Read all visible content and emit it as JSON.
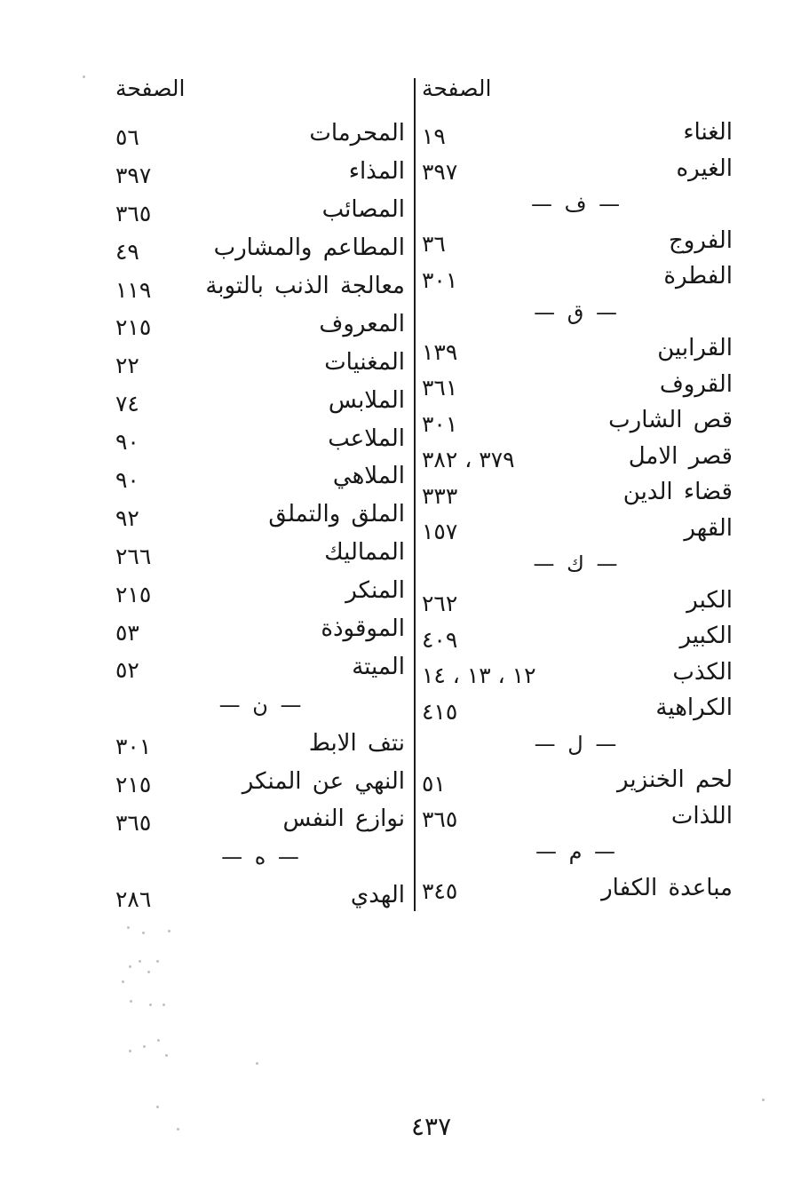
{
  "columns": {
    "right": {
      "header": "الصفحة",
      "entries": [
        {
          "type": "entry",
          "label": "الغناء",
          "pages": "١٩"
        },
        {
          "type": "entry",
          "label": "الغيره",
          "pages": "٣٩٧"
        },
        {
          "type": "section",
          "label": "— ف —"
        },
        {
          "type": "entry",
          "label": "الفروج",
          "pages": "٣٦"
        },
        {
          "type": "entry",
          "label": "الفطرة",
          "pages": "٣٠١"
        },
        {
          "type": "section",
          "label": "— ق —"
        },
        {
          "type": "entry",
          "label": "القرابين",
          "pages": "١٣٩"
        },
        {
          "type": "entry",
          "label": "القروف",
          "pages": "٣٦١"
        },
        {
          "type": "entry",
          "label": "قص الشارب",
          "pages": "٣٠١"
        },
        {
          "type": "entry",
          "label": "قصر الامل",
          "pages": "٣٧٩ ، ٣٨٢"
        },
        {
          "type": "entry",
          "label": "قضاء الدين",
          "pages": "٣٣٣"
        },
        {
          "type": "entry",
          "label": "القهر",
          "pages": "١٥٧"
        },
        {
          "type": "section",
          "label": "— ك —"
        },
        {
          "type": "entry",
          "label": "الكبر",
          "pages": "٢٦٢"
        },
        {
          "type": "entry",
          "label": "الكبير",
          "pages": "٤٠٩"
        },
        {
          "type": "entry",
          "label": "الكذب",
          "pages": "١٢ ، ١٣ ، ١٤"
        },
        {
          "type": "entry",
          "label": "الكراهية",
          "pages": "٤١٥"
        },
        {
          "type": "section",
          "label": "— ل —"
        },
        {
          "type": "entry",
          "label": "لحم الخنزير",
          "pages": "٥١"
        },
        {
          "type": "entry",
          "label": "اللذات",
          "pages": "٣٦٥"
        },
        {
          "type": "section",
          "label": "— م —"
        },
        {
          "type": "entry",
          "label": "مباعدة الكفار",
          "pages": "٣٤٥"
        }
      ]
    },
    "left": {
      "header": "الصفحة",
      "entries": [
        {
          "type": "entry",
          "label": "المحرمات",
          "pages": "٥٦"
        },
        {
          "type": "entry",
          "label": "المذاء",
          "pages": "٣٩٧"
        },
        {
          "type": "entry",
          "label": "المصائب",
          "pages": "٣٦٥"
        },
        {
          "type": "entry",
          "label": "المطاعم والمشارب",
          "pages": "٤٩"
        },
        {
          "type": "entry",
          "label": "معالجة الذنب بالتوبة",
          "pages": "١١٩"
        },
        {
          "type": "entry",
          "label": "المعروف",
          "pages": "٢١٥"
        },
        {
          "type": "entry",
          "label": "المغنيات",
          "pages": "٢٢"
        },
        {
          "type": "entry",
          "label": "الملابس",
          "pages": "٧٤"
        },
        {
          "type": "entry",
          "label": "الملاعب",
          "pages": "٩٠"
        },
        {
          "type": "entry",
          "label": "الملاهي",
          "pages": "٩٠"
        },
        {
          "type": "entry",
          "label": "الملق والتملق",
          "pages": "٩٢"
        },
        {
          "type": "entry",
          "label": "المماليك",
          "pages": "٢٦٦"
        },
        {
          "type": "entry",
          "label": "المنكر",
          "pages": "٢١٥"
        },
        {
          "type": "entry",
          "label": "الموقوذة",
          "pages": "٥٣"
        },
        {
          "type": "entry",
          "label": "الميتة",
          "pages": "٥٢"
        },
        {
          "type": "section",
          "label": "— ن —"
        },
        {
          "type": "entry",
          "label": "نتف الابط",
          "pages": "٣٠١"
        },
        {
          "type": "entry",
          "label": "النهي عن المنكر",
          "pages": "٢١٥"
        },
        {
          "type": "entry",
          "label": "نوازع النفس",
          "pages": "٣٦٥"
        },
        {
          "type": "section",
          "label": "— ه —"
        },
        {
          "type": "entry",
          "label": "الهدي",
          "pages": "٢٨٦"
        }
      ]
    }
  },
  "footer": {
    "page_number": "٤٣٧"
  }
}
